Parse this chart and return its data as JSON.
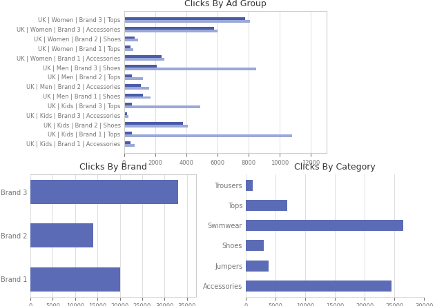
{
  "ad_group_labels": [
    "UK | Women | Brand 3 | Tops",
    "UK | Women | Brand 3 | Accessories",
    "UK | Women | Brand 2 | Shoes",
    "UK | Women | Brand 1 | Tops",
    "UK | Women | Brand 1 | Accessories",
    "UK | Men | Brand 3 | Shoes",
    "UK | Men | Brand 2 | Tops",
    "UK | Men | Brand 2 | Accessories",
    "UK | Men | Brand 1 | Shoes",
    "UK | Kids | Brand 3 | Tops",
    "UK | Kids | Brand 3 | Accessories",
    "UK | Kids | Brand 2 | Shoes",
    "UK | Kids | Brand 1 | Tops",
    "UK | Kids | Brand 1 | Accessories"
  ],
  "ad_group_values_dark": [
    7800,
    5800,
    700,
    400,
    2400,
    2100,
    500,
    1100,
    1200,
    500,
    200,
    3800,
    500,
    400
  ],
  "ad_group_values_light": [
    8100,
    6000,
    900,
    600,
    2600,
    8500,
    1200,
    1600,
    1700,
    4900,
    300,
    4100,
    10800,
    700
  ],
  "ad_group_title": "Clicks By Ad Group",
  "brand_labels": [
    "Brand 3",
    "Brand 2",
    "Brand 1"
  ],
  "brand_values": [
    33000,
    14000,
    20000
  ],
  "brand_title": "Clicks By Brand",
  "category_labels": [
    "Trousers",
    "Tops",
    "Swimwear",
    "Shoes",
    "Jumpers",
    "Accessories"
  ],
  "category_values": [
    1200,
    7000,
    26500,
    3000,
    3800,
    24500
  ],
  "category_title": "Clicks By Category",
  "bar_color_dark": "#4A5BA8",
  "bar_color_light": "#9BA8D8",
  "bar_color_brand": "#5B6BB5",
  "bar_color_cat": "#5B6BB5",
  "bg_color": "#ffffff",
  "grid_color": "#dddddd",
  "label_fontsize": 6,
  "title_fontsize": 9
}
